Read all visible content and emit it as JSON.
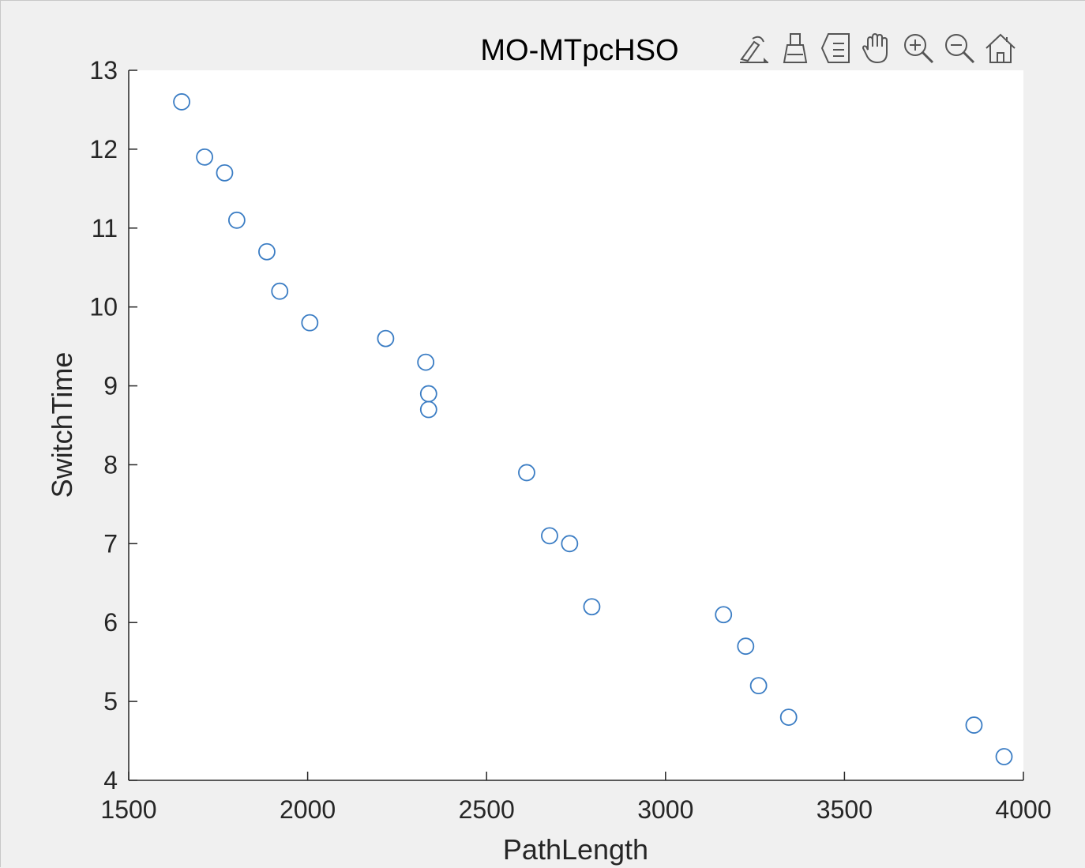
{
  "window": {
    "toolbar": [
      {
        "name": "brush-edit-icon",
        "label": ""
      },
      {
        "name": "data-brush-icon",
        "label": ""
      },
      {
        "name": "legend-icon",
        "label": ""
      },
      {
        "name": "pan-hand-icon",
        "label": ""
      },
      {
        "name": "zoom-in-icon",
        "label": ""
      },
      {
        "name": "zoom-out-icon",
        "label": ""
      },
      {
        "name": "home-icon",
        "label": ""
      }
    ]
  },
  "colors": {
    "marker": "#3b7dc4",
    "axes_bg": "#ffffff",
    "figure_bg": "#f0f0f0",
    "axis": "#262626"
  },
  "chart_data": {
    "type": "scatter",
    "title": "MO-MTpcHSO",
    "xlabel": "PathLength",
    "ylabel": "SwitchTime",
    "xlim": [
      1500,
      4000
    ],
    "ylim": [
      4,
      13
    ],
    "xticks": [
      "1500",
      "2000",
      "2500",
      "3000",
      "3500",
      "4000"
    ],
    "yticks": [
      "4",
      "5",
      "6",
      "7",
      "8",
      "9",
      "10",
      "11",
      "12",
      "13"
    ],
    "grid": false,
    "marker": "open-circle",
    "series": [
      {
        "x": [
          1648,
          1712,
          1768,
          1802,
          1886,
          1922,
          2006,
          2218,
          2330,
          2338,
          2338,
          2612,
          2676,
          2732,
          2794,
          3162,
          3224,
          3260,
          3344,
          3862,
          3946
        ],
        "y": [
          12.6,
          11.9,
          11.7,
          11.1,
          10.7,
          10.2,
          9.8,
          9.6,
          9.3,
          8.9,
          8.7,
          7.9,
          7.1,
          7.0,
          6.2,
          6.1,
          5.7,
          5.2,
          4.8,
          4.7,
          4.3
        ]
      }
    ]
  }
}
